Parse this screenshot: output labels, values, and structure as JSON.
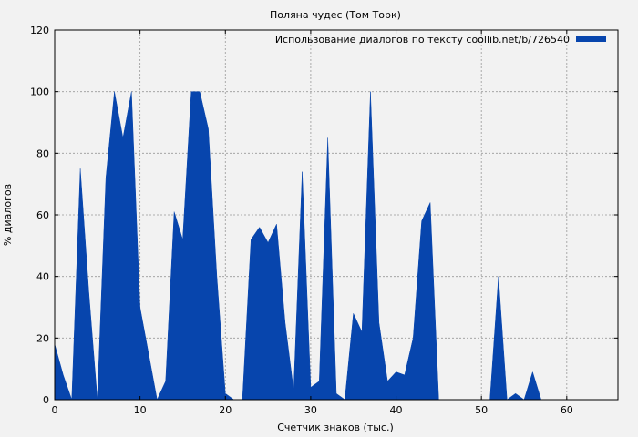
{
  "chart_data": {
    "type": "area",
    "title": "Поляна чудес (Том Торк)",
    "xlabel": "Счетчик знаков (тыс.)",
    "ylabel": "% диалогов",
    "xlim": [
      0,
      66
    ],
    "ylim": [
      0,
      120
    ],
    "xticks": [
      0,
      10,
      20,
      30,
      40,
      50,
      60
    ],
    "yticks": [
      0,
      20,
      40,
      60,
      80,
      100,
      120
    ],
    "grid": true,
    "legend_position": "top-right",
    "series": [
      {
        "name": "Использование диалогов по тексту coollib.net/b/726540",
        "color": "#0745ad",
        "x": [
          0,
          1,
          2,
          3,
          4,
          5,
          6,
          7,
          8,
          9,
          10,
          11,
          12,
          13,
          14,
          15,
          16,
          17,
          18,
          19,
          20,
          21,
          22,
          23,
          24,
          25,
          26,
          27,
          28,
          29,
          30,
          31,
          32,
          33,
          34,
          35,
          36,
          37,
          38,
          39,
          40,
          41,
          42,
          43,
          44,
          45,
          46,
          47,
          48,
          49,
          50,
          51,
          52,
          53,
          54,
          55,
          56,
          57
        ],
        "y": [
          18,
          8,
          0,
          75,
          35,
          0,
          72,
          100,
          85,
          100,
          30,
          15,
          0,
          6,
          61,
          52,
          100,
          100,
          88,
          40,
          2,
          0,
          0,
          52,
          56,
          51,
          57,
          25,
          3,
          74,
          4,
          6,
          85,
          2,
          0,
          28,
          22,
          100,
          25,
          6,
          9,
          8,
          20,
          58,
          64,
          0,
          0,
          0,
          0,
          0,
          0,
          0,
          40,
          0,
          2,
          0,
          9,
          0
        ]
      }
    ]
  }
}
